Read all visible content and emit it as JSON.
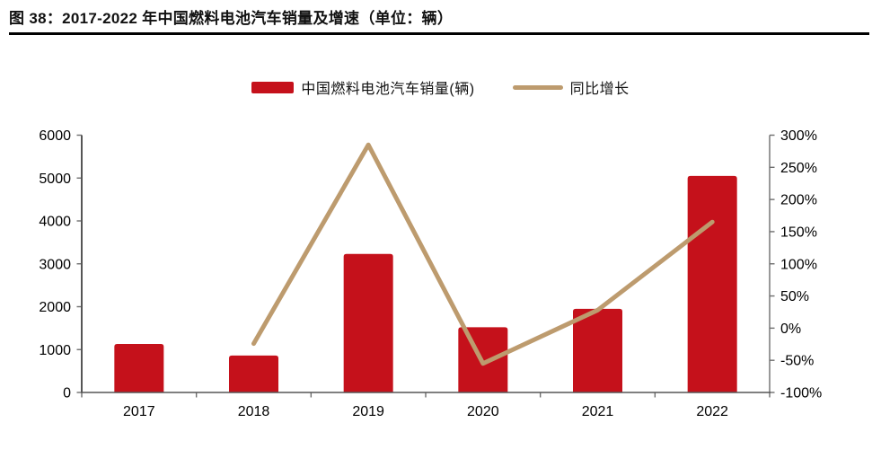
{
  "page": {
    "background": "#ffffff"
  },
  "header": {
    "title": "图 38：2017-2022 年中国燃料电池汽车销量及增速（单位：辆）"
  },
  "legend": {
    "items": [
      {
        "label": "中国燃料电池汽车销量(辆)",
        "swatch": "bar",
        "color": "#C5111B"
      },
      {
        "label": "同比增长",
        "swatch": "line",
        "color": "#BD9B6E"
      }
    ]
  },
  "chart_data": {
    "type": "bar",
    "subtype": "bar-with-line-overlay",
    "title": "图 38：2017-2022 年中国燃料电池汽车销量及增速（单位：辆）",
    "categories": [
      "2017",
      "2018",
      "2019",
      "2020",
      "2021",
      "2022"
    ],
    "series": [
      {
        "name": "中国燃料电池汽车销量(辆)",
        "type": "bar",
        "axis": "left",
        "color": "#C5111B",
        "values": [
          1130,
          860,
          3230,
          1520,
          1950,
          5050
        ]
      },
      {
        "name": "同比增长",
        "type": "line",
        "axis": "right",
        "color": "#BD9B6E",
        "unit": "%",
        "values": [
          null,
          -24,
          285,
          -55,
          28,
          165
        ]
      }
    ],
    "left_axis": {
      "min": 0,
      "max": 6000,
      "step": 1000,
      "tick_labels": [
        "0",
        "1000",
        "2000",
        "3000",
        "4000",
        "5000",
        "6000"
      ]
    },
    "right_axis": {
      "min": -100,
      "max": 300,
      "step": 50,
      "tick_labels": [
        "-100%",
        "-50%",
        "0%",
        "50%",
        "100%",
        "150%",
        "200%",
        "250%",
        "300%"
      ]
    },
    "grid": false,
    "legend_position": "top-center",
    "axis_line_color": "#6e6e6e",
    "tick_text_color": "#000000"
  }
}
